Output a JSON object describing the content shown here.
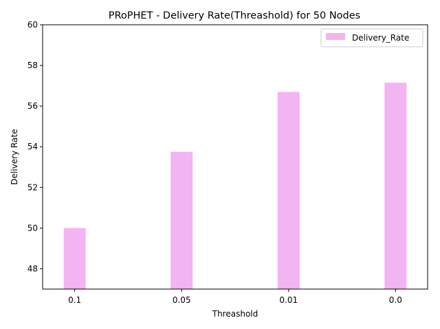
{
  "chart_data": {
    "type": "bar",
    "title": "PRoPHET - Delivery Rate(Threashold) for 50 Nodes",
    "xlabel": "Threashold",
    "ylabel": "Delivery Rate",
    "categories": [
      "0.1",
      "0.05",
      "0.01",
      "0.0"
    ],
    "series": [
      {
        "name": "Delivery_Rate",
        "values": [
          50.0,
          53.75,
          56.7,
          57.15
        ],
        "color": "#f2b4f2"
      }
    ],
    "ylim": [
      47,
      60
    ],
    "yticks": [
      48,
      50,
      52,
      54,
      56,
      58,
      60
    ],
    "grid": false,
    "legend": "top-right"
  }
}
